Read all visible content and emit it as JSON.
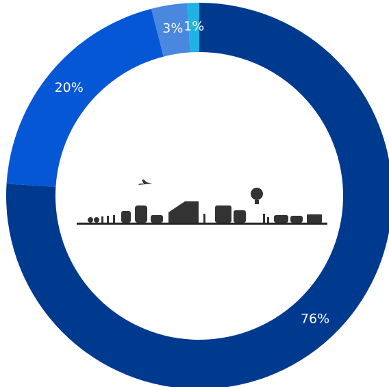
{
  "chart_data": {
    "type": "donut",
    "values": [
      76,
      20,
      3,
      1
    ],
    "value_labels": [
      "76%",
      "20%",
      "3%",
      "1%"
    ],
    "colors": [
      "#003a8f",
      "#0657d6",
      "#4a87df",
      "#1fb3e4"
    ]
  }
}
